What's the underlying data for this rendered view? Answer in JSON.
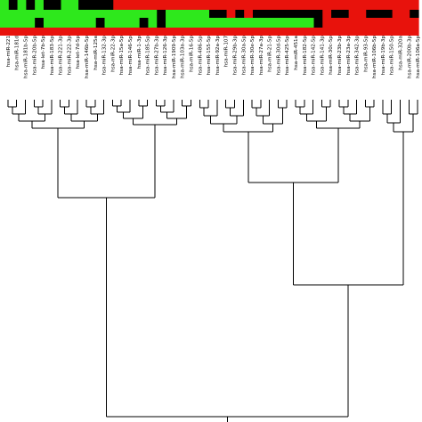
{
  "figure": {
    "heatmap": {
      "rows": 4,
      "palette": {
        "red": "#e8120c",
        "black": "#000000",
        "green": "#2ee81c"
      }
    },
    "labels": [
      "hsa-miR-221",
      "hsa-miR-181d",
      "hsa-miR-181b-5p",
      "hsa-miR-20b-5p",
      "hsa-let-7b-5p",
      "hsa-miR-183-5p",
      "hsa-miR-221-3p",
      "hsa-miR-222-3p",
      "hsa-let-7d-5p",
      "hsa-miR-146b-5p",
      "hsa-miR-125a",
      "hsa-miR-132-3p",
      "hsa-miR-22-3p",
      "hsa-miR-15a-5p",
      "hsa-miR-146-5p",
      "hsa-miR-1-3p",
      "hsa-miR-185-5p",
      "hsa-miR-27b-3p",
      "hsa-miR-126-3p",
      "hsa-miR-1909-5p",
      "hsa-miR-103a-3p",
      "hsa-miR-16-5p",
      "hsa-miR-486-5p",
      "hsa-miR-155-5p",
      "hsa-miR-92a-3p",
      "hsa-miR-107",
      "hsa-miR-29b-3p",
      "hsa-miR-30a-5p",
      "hsa-miR-30e-5p",
      "hsa-miR-27a-3p",
      "hsa-miR-21-5p",
      "hsa-miR-30d-5p",
      "hsa-miR-425-5p",
      "hsa-miR-451a",
      "hsa-miR-182-5p",
      "hsa-miR-142-5p",
      "hsa-miR-141-3p",
      "hsa-miR-30c-5p",
      "hsa-miR-23b-3p",
      "hsa-miR-23a-3p",
      "hsa-miR-342-3p",
      "hsa-miR-93-5p",
      "hsa-miR-106b-5p",
      "hsa-miR-19b-3p",
      "hsa-miR-150-5p",
      "hsa-miR-320a",
      "hsa-miR-200b-3p",
      "hsa-miR-106a-5p"
    ]
  }
}
